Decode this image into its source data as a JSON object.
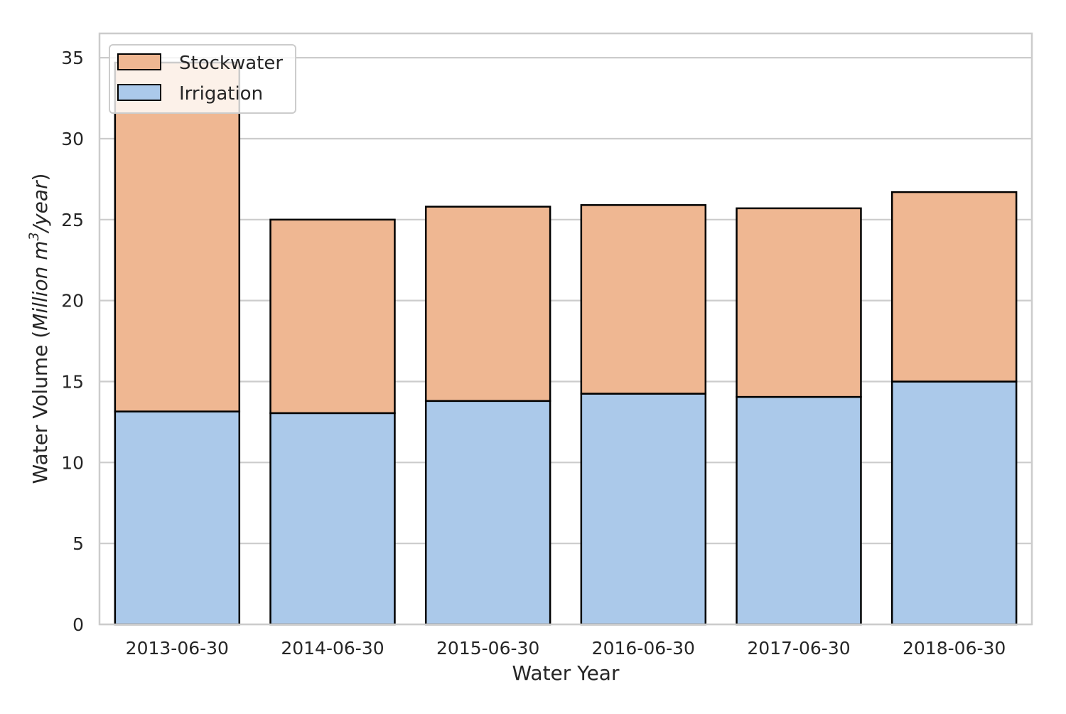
{
  "chart_data": {
    "type": "bar",
    "stacked": true,
    "categories": [
      "2013-06-30",
      "2014-06-30",
      "2015-06-30",
      "2016-06-30",
      "2017-06-30",
      "2018-06-30"
    ],
    "series": [
      {
        "name": "Irrigation",
        "values": [
          13.15,
          13.05,
          13.8,
          14.25,
          14.05,
          15.0
        ],
        "color": "#abc9ea"
      },
      {
        "name": "Stockwater",
        "values": [
          21.55,
          11.95,
          12.0,
          11.65,
          11.65,
          11.7
        ],
        "color": "#efb792"
      }
    ],
    "xlabel": "Water Year",
    "ylabel": {
      "prefix": "Water Volume (",
      "italic_unit": "Million m",
      "superscript": "3",
      "italic_tail": "/year",
      "suffix": ")"
    },
    "ylim": [
      0,
      36.5
    ],
    "yticks": [
      "0",
      "5",
      "10",
      "15",
      "20",
      "25",
      "30",
      "35"
    ],
    "ytick_values": [
      0,
      5,
      10,
      15,
      20,
      25,
      30,
      35
    ],
    "grid": "horizontal",
    "legend": {
      "position": "top-left",
      "entries": [
        "Stockwater",
        "Irrigation"
      ]
    },
    "colors": {
      "background": "#ffffff",
      "grid": "#cccccc",
      "bar_edge": "#000000",
      "frame": "#cccccc"
    }
  }
}
